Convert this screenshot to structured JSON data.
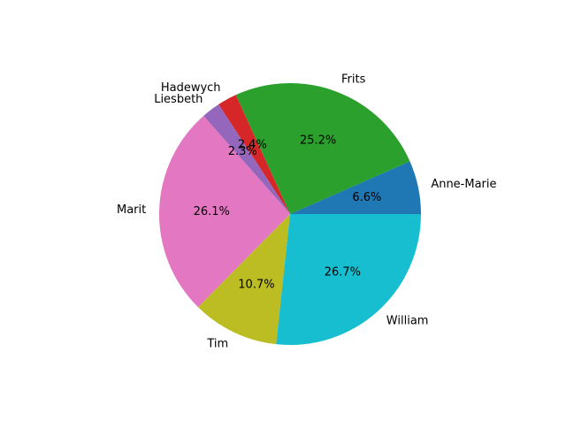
{
  "chart_data": {
    "type": "pie",
    "start_angle_deg": 0,
    "direction": "counterclockwise",
    "slices": [
      {
        "label": "Anne-Marie",
        "value": 6.6,
        "pct_label": "6.6%",
        "color": "#1f77b4"
      },
      {
        "label": "Frits",
        "value": 25.2,
        "pct_label": "25.2%",
        "color": "#2ca02c"
      },
      {
        "label": "Hadewych",
        "value": 2.4,
        "pct_label": "2.4%",
        "color": "#d62728"
      },
      {
        "label": "Liesbeth",
        "value": 2.3,
        "pct_label": "2.3%",
        "color": "#9467bd"
      },
      {
        "label": "Marit",
        "value": 26.1,
        "pct_label": "26.1%",
        "color": "#e377c2"
      },
      {
        "label": "Tim",
        "value": 10.7,
        "pct_label": "10.7%",
        "color": "#bcbd22"
      },
      {
        "label": "William",
        "value": 26.7,
        "pct_label": "26.7%",
        "color": "#17becf"
      }
    ]
  }
}
